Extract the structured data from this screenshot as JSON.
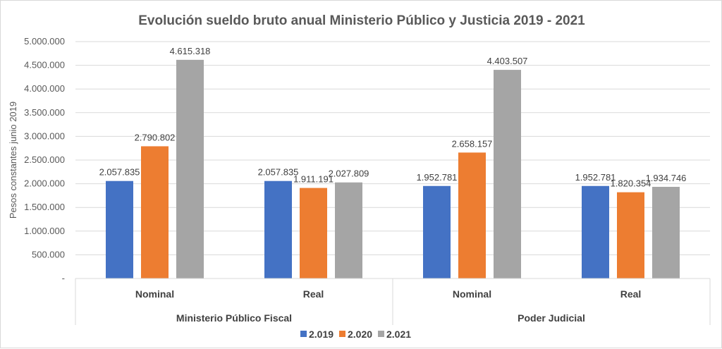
{
  "chart_data": {
    "type": "bar",
    "title": "Evolución sueldo bruto anual  Ministerio Público y Justicia 2019 - 2021",
    "xlabel": "",
    "ylabel": "Pesos constantes junio 2019",
    "ylim": [
      0,
      5000000
    ],
    "yticks": [
      0,
      500000,
      1000000,
      1500000,
      2000000,
      2500000,
      3000000,
      3500000,
      4000000,
      4500000,
      5000000
    ],
    "ytick_labels": [
      "-",
      "500.000",
      "1.000.000",
      "1.500.000",
      "2.000.000",
      "2.500.000",
      "3.000.000",
      "3.500.000",
      "4.000.000",
      "4.500.000",
      "5.000.000"
    ],
    "grid": true,
    "legend_position": "bottom",
    "groups": [
      {
        "label": "Ministerio Público Fiscal",
        "categories": [
          "Nominal",
          "Real"
        ]
      },
      {
        "label": "Poder Judicial",
        "categories": [
          "Nominal",
          "Real"
        ]
      }
    ],
    "categories": [
      "Ministerio Público Fiscal - Nominal",
      "Ministerio Público Fiscal - Real",
      "Poder Judicial - Nominal",
      "Poder Judicial - Real"
    ],
    "category_labels": [
      "Nominal",
      "Real",
      "Nominal",
      "Real"
    ],
    "series": [
      {
        "name": "2.019",
        "color": "#4472C4",
        "values": [
          2057835,
          2057835,
          1952781,
          1952781
        ],
        "labels": [
          "2.057.835",
          "2.057.835",
          "1.952.781",
          "1.952.781"
        ]
      },
      {
        "name": "2.020",
        "color": "#ED7D31",
        "values": [
          2790802,
          1911191,
          2658157,
          1820354
        ],
        "labels": [
          "2.790.802",
          "1.911.191",
          "2.658.157",
          "1.820.354"
        ]
      },
      {
        "name": "2.021",
        "color": "#A5A5A5",
        "values": [
          4615318,
          2027809,
          4403507,
          1934746
        ],
        "labels": [
          "4.615.318",
          "2.027.809",
          "4.403.507",
          "1.934.746"
        ]
      }
    ]
  }
}
